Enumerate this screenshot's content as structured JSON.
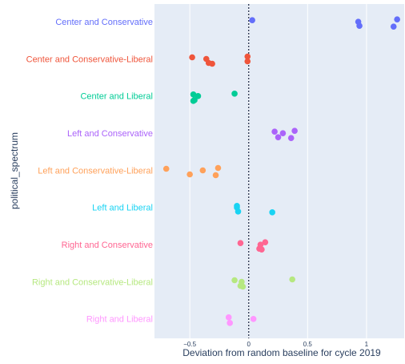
{
  "chart_data": {
    "type": "strip",
    "x_label": "Deviation from random baseline for cycle 2019",
    "y_label": "political_spectrum",
    "xlim": [
      -0.8,
      1.32
    ],
    "xticks": [
      {
        "value": -0.5,
        "label": "−0.5"
      },
      0,
      0.5,
      1
    ],
    "reference_line": 0,
    "grid": true,
    "series": [
      {
        "name": "Center and Conservative",
        "color": "#636efa",
        "values": [
          0.03,
          0.94,
          0.93,
          1.23,
          1.26
        ]
      },
      {
        "name": "Center and Conservative-Liberal",
        "color": "#ef553b",
        "values": [
          -0.48,
          -0.34,
          -0.36,
          -0.31,
          -0.01,
          -0.01
        ]
      },
      {
        "name": "Center and Liberal",
        "color": "#00cc96",
        "values": [
          -0.47,
          -0.46,
          -0.43,
          -0.47,
          -0.12
        ]
      },
      {
        "name": "Left and Conservative",
        "color": "#ab63fa",
        "values": [
          0.22,
          0.25,
          0.29,
          0.36,
          0.39
        ]
      },
      {
        "name": "Left and Conservative-Liberal",
        "color": "#ffa15a",
        "values": [
          -0.7,
          -0.5,
          -0.39,
          -0.28,
          -0.26
        ]
      },
      {
        "name": "Left and Liberal",
        "color": "#19d3f3",
        "values": [
          -0.1,
          -0.09,
          -0.1,
          0.2
        ]
      },
      {
        "name": "Right and Conservative",
        "color": "#ff6692",
        "values": [
          -0.07,
          0.09,
          0.1,
          0.11,
          0.14
        ]
      },
      {
        "name": "Right and Conservative-Liberal",
        "color": "#b6e880",
        "values": [
          -0.12,
          -0.07,
          -0.06,
          -0.05,
          0.37
        ]
      },
      {
        "name": "Right and Liberal",
        "color": "#ff97ff",
        "values": [
          -0.17,
          -0.16,
          0.04
        ]
      }
    ]
  }
}
